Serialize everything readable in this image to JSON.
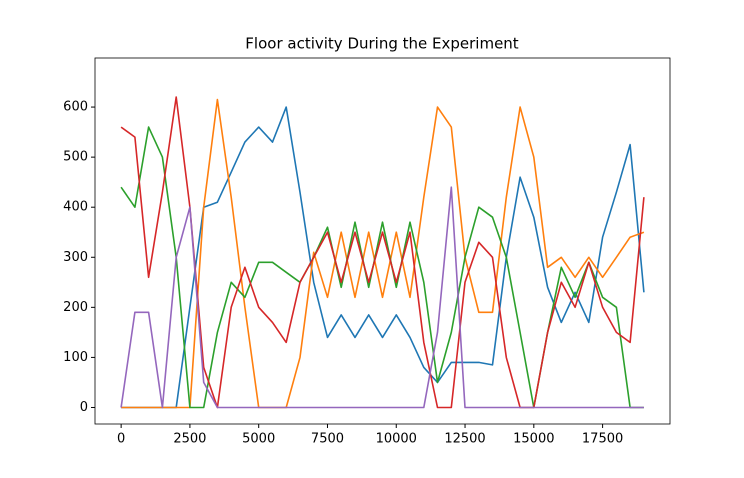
{
  "chart_data": {
    "type": "line",
    "title": "Floor activity During the Experiment",
    "x": [
      0,
      500,
      1000,
      1500,
      2000,
      2500,
      3000,
      3500,
      4000,
      4500,
      5000,
      5500,
      6000,
      6500,
      7000,
      7500,
      8000,
      8500,
      9000,
      9500,
      10000,
      10500,
      11000,
      11500,
      12000,
      12500,
      13000,
      13500,
      14000,
      14500,
      15000,
      15500,
      16000,
      16500,
      17000,
      17500,
      18000,
      18500,
      19000
    ],
    "series": [
      {
        "color": "#1f77b4",
        "values": [
          0,
          0,
          0,
          0,
          0,
          200,
          400,
          410,
          470,
          530,
          560,
          530,
          600,
          430,
          250,
          140,
          185,
          140,
          185,
          140,
          185,
          140,
          80,
          50,
          90,
          90,
          90,
          85,
          300,
          460,
          380,
          240,
          170,
          230,
          170,
          340,
          430,
          525,
          230
        ]
      },
      {
        "color": "#ff7f0e",
        "values": [
          0,
          0,
          0,
          0,
          0,
          0,
          400,
          615,
          420,
          200,
          0,
          0,
          0,
          100,
          310,
          220,
          350,
          220,
          350,
          220,
          350,
          220,
          420,
          600,
          560,
          300,
          190,
          190,
          420,
          600,
          500,
          280,
          300,
          260,
          300,
          260,
          300,
          340,
          350
        ]
      },
      {
        "color": "#2ca02c",
        "values": [
          440,
          400,
          560,
          500,
          300,
          0,
          0,
          150,
          250,
          220,
          290,
          290,
          270,
          250,
          300,
          360,
          240,
          370,
          240,
          370,
          240,
          370,
          250,
          50,
          150,
          300,
          400,
          380,
          300,
          150,
          0,
          150,
          280,
          220,
          290,
          220,
          200,
          0,
          0
        ]
      },
      {
        "color": "#d62728",
        "values": [
          560,
          540,
          260,
          430,
          620,
          400,
          80,
          0,
          200,
          280,
          200,
          170,
          130,
          250,
          300,
          350,
          250,
          350,
          250,
          350,
          250,
          350,
          130,
          0,
          0,
          250,
          330,
          300,
          100,
          0,
          0,
          150,
          250,
          200,
          290,
          200,
          150,
          130,
          420
        ]
      },
      {
        "color": "#9467bd",
        "values": [
          0,
          190,
          190,
          0,
          300,
          400,
          50,
          0,
          0,
          0,
          0,
          0,
          0,
          0,
          0,
          0,
          0,
          0,
          0,
          0,
          0,
          0,
          0,
          150,
          440,
          0,
          0,
          0,
          0,
          0,
          0,
          0,
          0,
          0,
          0,
          0,
          0,
          0,
          0
        ]
      }
    ],
    "xlim": [
      -950,
      19950
    ],
    "ylim": [
      -33,
      698
    ],
    "xticks": [
      0,
      2500,
      5000,
      7500,
      10000,
      12500,
      15000,
      17500
    ],
    "yticks": [
      0,
      100,
      200,
      300,
      400,
      500,
      600
    ]
  }
}
